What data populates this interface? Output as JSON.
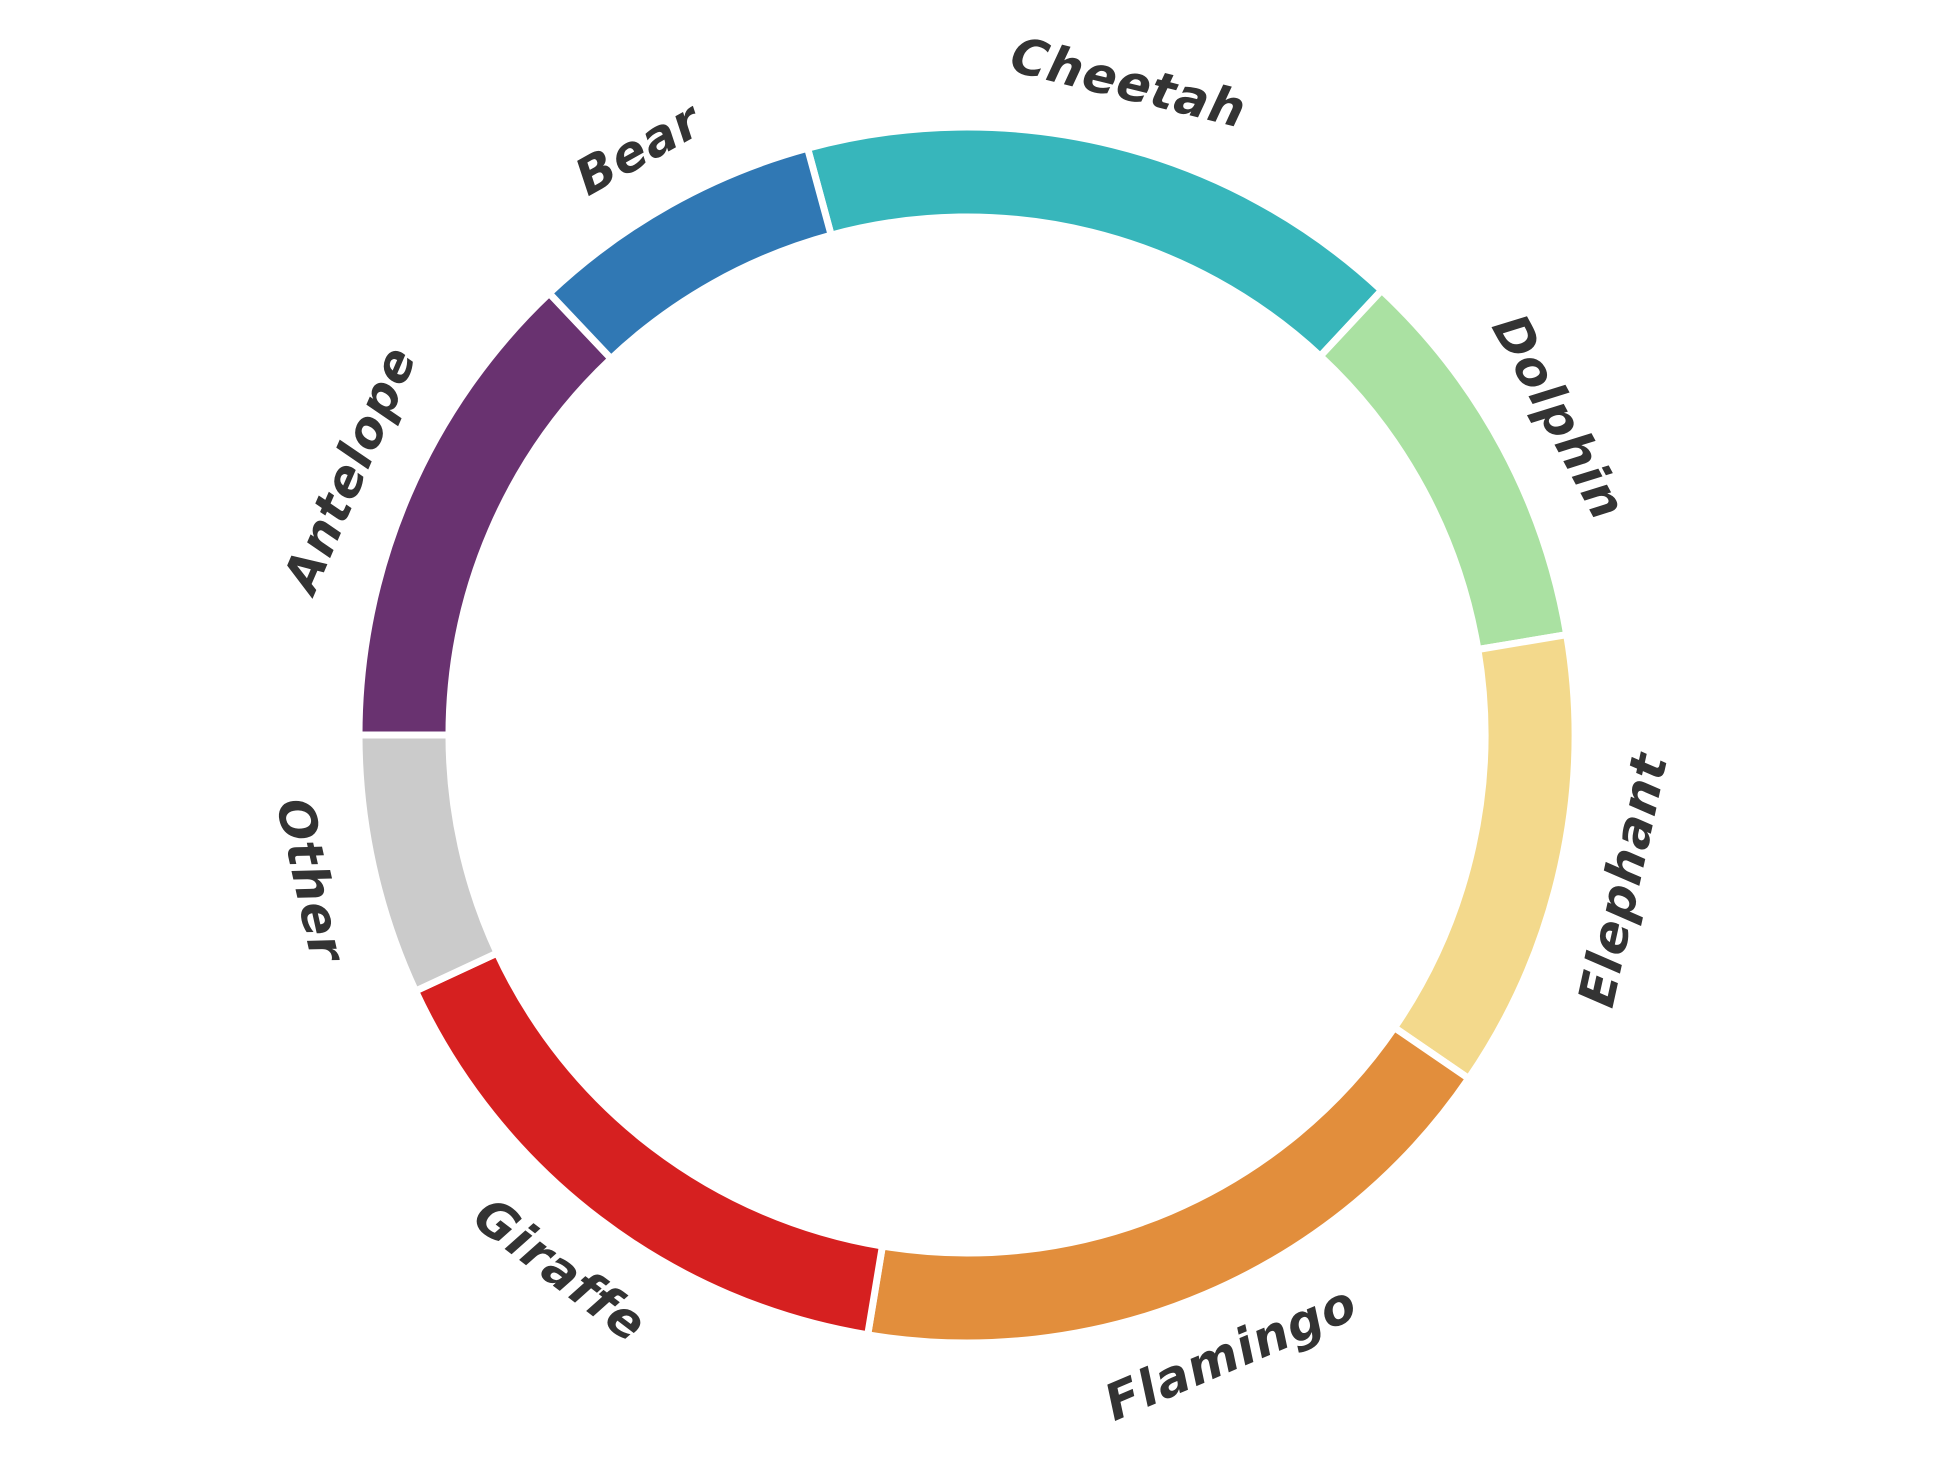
{
  "figure": {
    "background": "#ffffff",
    "label_color": "#333333",
    "separator_color": "#ffffff"
  },
  "chart_data": {
    "type": "pie",
    "subtype": "donut",
    "title": "",
    "legend": "none",
    "direction": "clockwise",
    "start_bearing_deg": 344.8,
    "inner_radius_ratio": 0.852,
    "categories": [
      "Cheetah",
      "Dolphin",
      "Elephant",
      "Flamingo",
      "Giraffe",
      "Other",
      "Antelope",
      "Bear"
    ],
    "values_degrees": [
      58.2,
      37.5,
      43.9,
      65.0,
      55.7,
      24.9,
      46.6,
      28.2
    ],
    "percentages": [
      16.2,
      10.4,
      12.2,
      18.1,
      15.5,
      6.9,
      12.9,
      7.8
    ],
    "colors": [
      "#37b6bb",
      "#aae1a2",
      "#f3d98c",
      "#e28e3c",
      "#d62020",
      "#cbcbcb",
      "#693270",
      "#3078b4"
    ],
    "segments": [
      {
        "label": "Cheetah",
        "degrees": 58.2,
        "percent": 16.2,
        "color": "#37b6bb"
      },
      {
        "label": "Dolphin",
        "degrees": 37.5,
        "percent": 10.4,
        "color": "#aae1a2"
      },
      {
        "label": "Elephant",
        "degrees": 43.9,
        "percent": 12.2,
        "color": "#f3d98c"
      },
      {
        "label": "Flamingo",
        "degrees": 65.0,
        "percent": 18.1,
        "color": "#e28e3c"
      },
      {
        "label": "Giraffe",
        "degrees": 55.7,
        "percent": 15.5,
        "color": "#d62020"
      },
      {
        "label": "Other",
        "degrees": 24.9,
        "percent": 6.9,
        "color": "#cbcbcb"
      },
      {
        "label": "Antelope",
        "degrees": 46.6,
        "percent": 12.9,
        "color": "#693270"
      },
      {
        "label": "Bear",
        "degrees": 28.2,
        "percent": 7.8,
        "color": "#3078b4"
      }
    ]
  }
}
